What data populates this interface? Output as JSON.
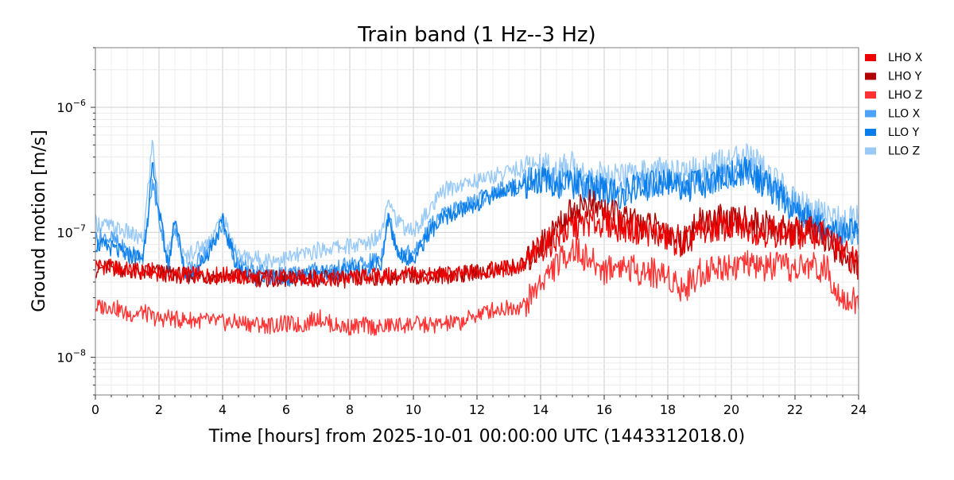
{
  "chart_data": {
    "type": "line",
    "title": "Train band (1 Hz--3 Hz)",
    "xlabel": "Time [hours] from 2025-10-01 00:00:00 UTC (1443312018.0)",
    "ylabel": "Ground motion [m/s]",
    "xlim": [
      0,
      24
    ],
    "ylim": [
      5e-09,
      3e-06
    ],
    "yscale": "log",
    "grid": true,
    "legend_position": "outside-right",
    "x_ticks": [
      0,
      2,
      4,
      6,
      8,
      10,
      12,
      14,
      16,
      18,
      20,
      22,
      24
    ],
    "x_tick_labels": [
      "0",
      "2",
      "4",
      "6",
      "8",
      "10",
      "12",
      "14",
      "16",
      "18",
      "20",
      "22",
      "24"
    ],
    "y_ticks": [
      1e-08,
      1e-07,
      1e-06
    ],
    "y_tick_labels": [
      {
        "base": "10",
        "exp": "−8"
      },
      {
        "base": "10",
        "exp": "−7"
      },
      {
        "base": "10",
        "exp": "−6"
      }
    ],
    "x": [
      0,
      0.5,
      1,
      1.5,
      1.8,
      2,
      2.3,
      2.5,
      2.8,
      3,
      3.5,
      4,
      4.5,
      5,
      5.5,
      6,
      6.5,
      7,
      7.5,
      8,
      8.5,
      9,
      9.2,
      9.5,
      10,
      10.5,
      11,
      11.5,
      12,
      12.5,
      13,
      13.5,
      14,
      14.5,
      15,
      15.5,
      16,
      16.5,
      17,
      17.5,
      18,
      18.5,
      19,
      19.5,
      20,
      20.5,
      21,
      21.5,
      22,
      22.5,
      23,
      23.5,
      24
    ],
    "series": [
      {
        "name": "LHO X",
        "color": "#ee0000",
        "values": [
          5.5e-08,
          5.2e-08,
          5e-08,
          4.8e-08,
          4.9e-08,
          4.7e-08,
          4.6e-08,
          4.5e-08,
          4.6e-08,
          4.6e-08,
          4.5e-08,
          4.6e-08,
          4.4e-08,
          4.3e-08,
          4.4e-08,
          4.3e-08,
          4.3e-08,
          4.3e-08,
          4.3e-08,
          4.3e-08,
          4.4e-08,
          4.5e-08,
          4.5e-08,
          4.5e-08,
          4.6e-08,
          4.5e-08,
          4.6e-08,
          4.6e-08,
          4.8e-08,
          5e-08,
          5.2e-08,
          5.4e-08,
          7.5e-08,
          9e-08,
          1.1e-07,
          1.2e-07,
          1.2e-07,
          1.1e-07,
          1.05e-07,
          1e-07,
          9e-08,
          8e-08,
          1e-07,
          1.1e-07,
          1.1e-07,
          1.1e-07,
          1e-07,
          1e-07,
          9.5e-08,
          1e-07,
          9e-08,
          7e-08,
          5.5e-08
        ]
      },
      {
        "name": "LHO Y",
        "color": "#b00000",
        "values": [
          5e-08,
          5.3e-08,
          5e-08,
          4.7e-08,
          4.9e-08,
          4.8e-08,
          4.6e-08,
          4.6e-08,
          4.5e-08,
          4.5e-08,
          4.5e-08,
          4.4e-08,
          4.4e-08,
          4.3e-08,
          4.2e-08,
          4.2e-08,
          4.3e-08,
          4.3e-08,
          4.2e-08,
          4.2e-08,
          4.3e-08,
          4.4e-08,
          4.4e-08,
          4.4e-08,
          4.5e-08,
          4.5e-08,
          4.5e-08,
          4.6e-08,
          4.8e-08,
          5e-08,
          5.2e-08,
          5.5e-08,
          8e-08,
          1.1e-07,
          1.5e-07,
          1.7e-07,
          1.5e-07,
          1.3e-07,
          1.2e-07,
          1.1e-07,
          1e-07,
          8.5e-08,
          1.2e-07,
          1.3e-07,
          1.2e-07,
          1.25e-07,
          1.15e-07,
          1.05e-07,
          1e-07,
          1.05e-07,
          9e-08,
          6.5e-08,
          5.5e-08
        ]
      },
      {
        "name": "LHO Z",
        "color": "#ff3333",
        "values": [
          2.5e-08,
          2.6e-08,
          2.2e-08,
          2.3e-08,
          2.1e-08,
          2e-08,
          2.1e-08,
          2e-08,
          2e-08,
          2e-08,
          1.95e-08,
          1.9e-08,
          1.9e-08,
          1.85e-08,
          1.8e-08,
          1.85e-08,
          1.8e-08,
          2.1e-08,
          1.8e-08,
          1.75e-08,
          1.8e-08,
          1.7e-08,
          1.8e-08,
          1.8e-08,
          1.85e-08,
          1.8e-08,
          1.85e-08,
          1.9e-08,
          2.2e-08,
          2.4e-08,
          2.5e-08,
          2.6e-08,
          4e-08,
          5.5e-08,
          7.5e-08,
          6e-08,
          5e-08,
          5.5e-08,
          5e-08,
          4.8e-08,
          4.5e-08,
          3.5e-08,
          4.8e-08,
          5.2e-08,
          5.5e-08,
          5.5e-08,
          5.2e-08,
          5.3e-08,
          5e-08,
          5.5e-08,
          5e-08,
          3e-08,
          2.7e-08
        ]
      },
      {
        "name": "LLO X",
        "color": "#4da3f7",
        "values": [
          9e-08,
          9e-08,
          7e-08,
          6.5e-08,
          2.5e-07,
          1.3e-07,
          5.5e-08,
          1.2e-07,
          5e-08,
          5e-08,
          7e-08,
          1.1e-07,
          5.5e-08,
          4.8e-08,
          4.6e-08,
          4.6e-08,
          4.8e-08,
          5e-08,
          5e-08,
          5.5e-08,
          5.5e-08,
          6.5e-08,
          1.4e-07,
          7.5e-08,
          6.5e-08,
          1.1e-07,
          1.4e-07,
          1.6e-07,
          1.8e-07,
          2.1e-07,
          2.3e-07,
          2.6e-07,
          2.8e-07,
          2.5e-07,
          2.6e-07,
          2.4e-07,
          2.2e-07,
          2.1e-07,
          2.3e-07,
          2.5e-07,
          2.6e-07,
          2.4e-07,
          2.5e-07,
          2.7e-07,
          3e-07,
          3.2e-07,
          2.6e-07,
          2e-07,
          1.6e-07,
          1.3e-07,
          1.1e-07,
          1e-07,
          1e-07
        ]
      },
      {
        "name": "LLO Y",
        "color": "#0a7de8",
        "values": [
          8e-08,
          7.5e-08,
          6.5e-08,
          6.3e-08,
          3.3e-07,
          1.5e-07,
          5e-08,
          1.4e-07,
          4.6e-08,
          4.6e-08,
          6.5e-08,
          1.2e-07,
          5e-08,
          4.4e-08,
          4.3e-08,
          4.3e-08,
          4.4e-08,
          4.6e-08,
          4.7e-08,
          4.9e-08,
          5e-08,
          5.8e-08,
          1.3e-07,
          7e-08,
          6e-08,
          1e-07,
          1.3e-07,
          1.5e-07,
          1.7e-07,
          2e-07,
          2.2e-07,
          2.4e-07,
          2.6e-07,
          2.4e-07,
          2.4e-07,
          2.3e-07,
          2.1e-07,
          2e-07,
          2.2e-07,
          2.4e-07,
          2.5e-07,
          2.3e-07,
          2.4e-07,
          2.6e-07,
          2.9e-07,
          3.1e-07,
          2.5e-07,
          1.9e-07,
          1.5e-07,
          1.2e-07,
          1.05e-07,
          9.5e-08,
          1e-07
        ]
      },
      {
        "name": "LLO Z",
        "color": "#99caf6",
        "values": [
          1.2e-07,
          1.1e-07,
          1e-07,
          8.5e-08,
          5.5e-07,
          1.5e-07,
          6.5e-08,
          1.1e-07,
          6e-08,
          7e-08,
          8e-08,
          1.3e-07,
          6.5e-08,
          6.2e-08,
          6e-08,
          6.2e-08,
          6.6e-08,
          7.2e-08,
          7.6e-08,
          7.8e-08,
          8e-08,
          1e-07,
          2e-07,
          1.2e-07,
          1e-07,
          1.5e-07,
          2.2e-07,
          2.4e-07,
          2.6e-07,
          2.8e-07,
          3.1e-07,
          3.3e-07,
          3.5e-07,
          3.2e-07,
          3.4e-07,
          3e-07,
          2.8e-07,
          2.7e-07,
          2.9e-07,
          3.1e-07,
          3.2e-07,
          3e-07,
          3.2e-07,
          3.5e-07,
          3.7e-07,
          4e-07,
          3.2e-07,
          2.4e-07,
          1.8e-07,
          1.5e-07,
          1.3e-07,
          1.2e-07,
          1.3e-07
        ]
      }
    ]
  }
}
